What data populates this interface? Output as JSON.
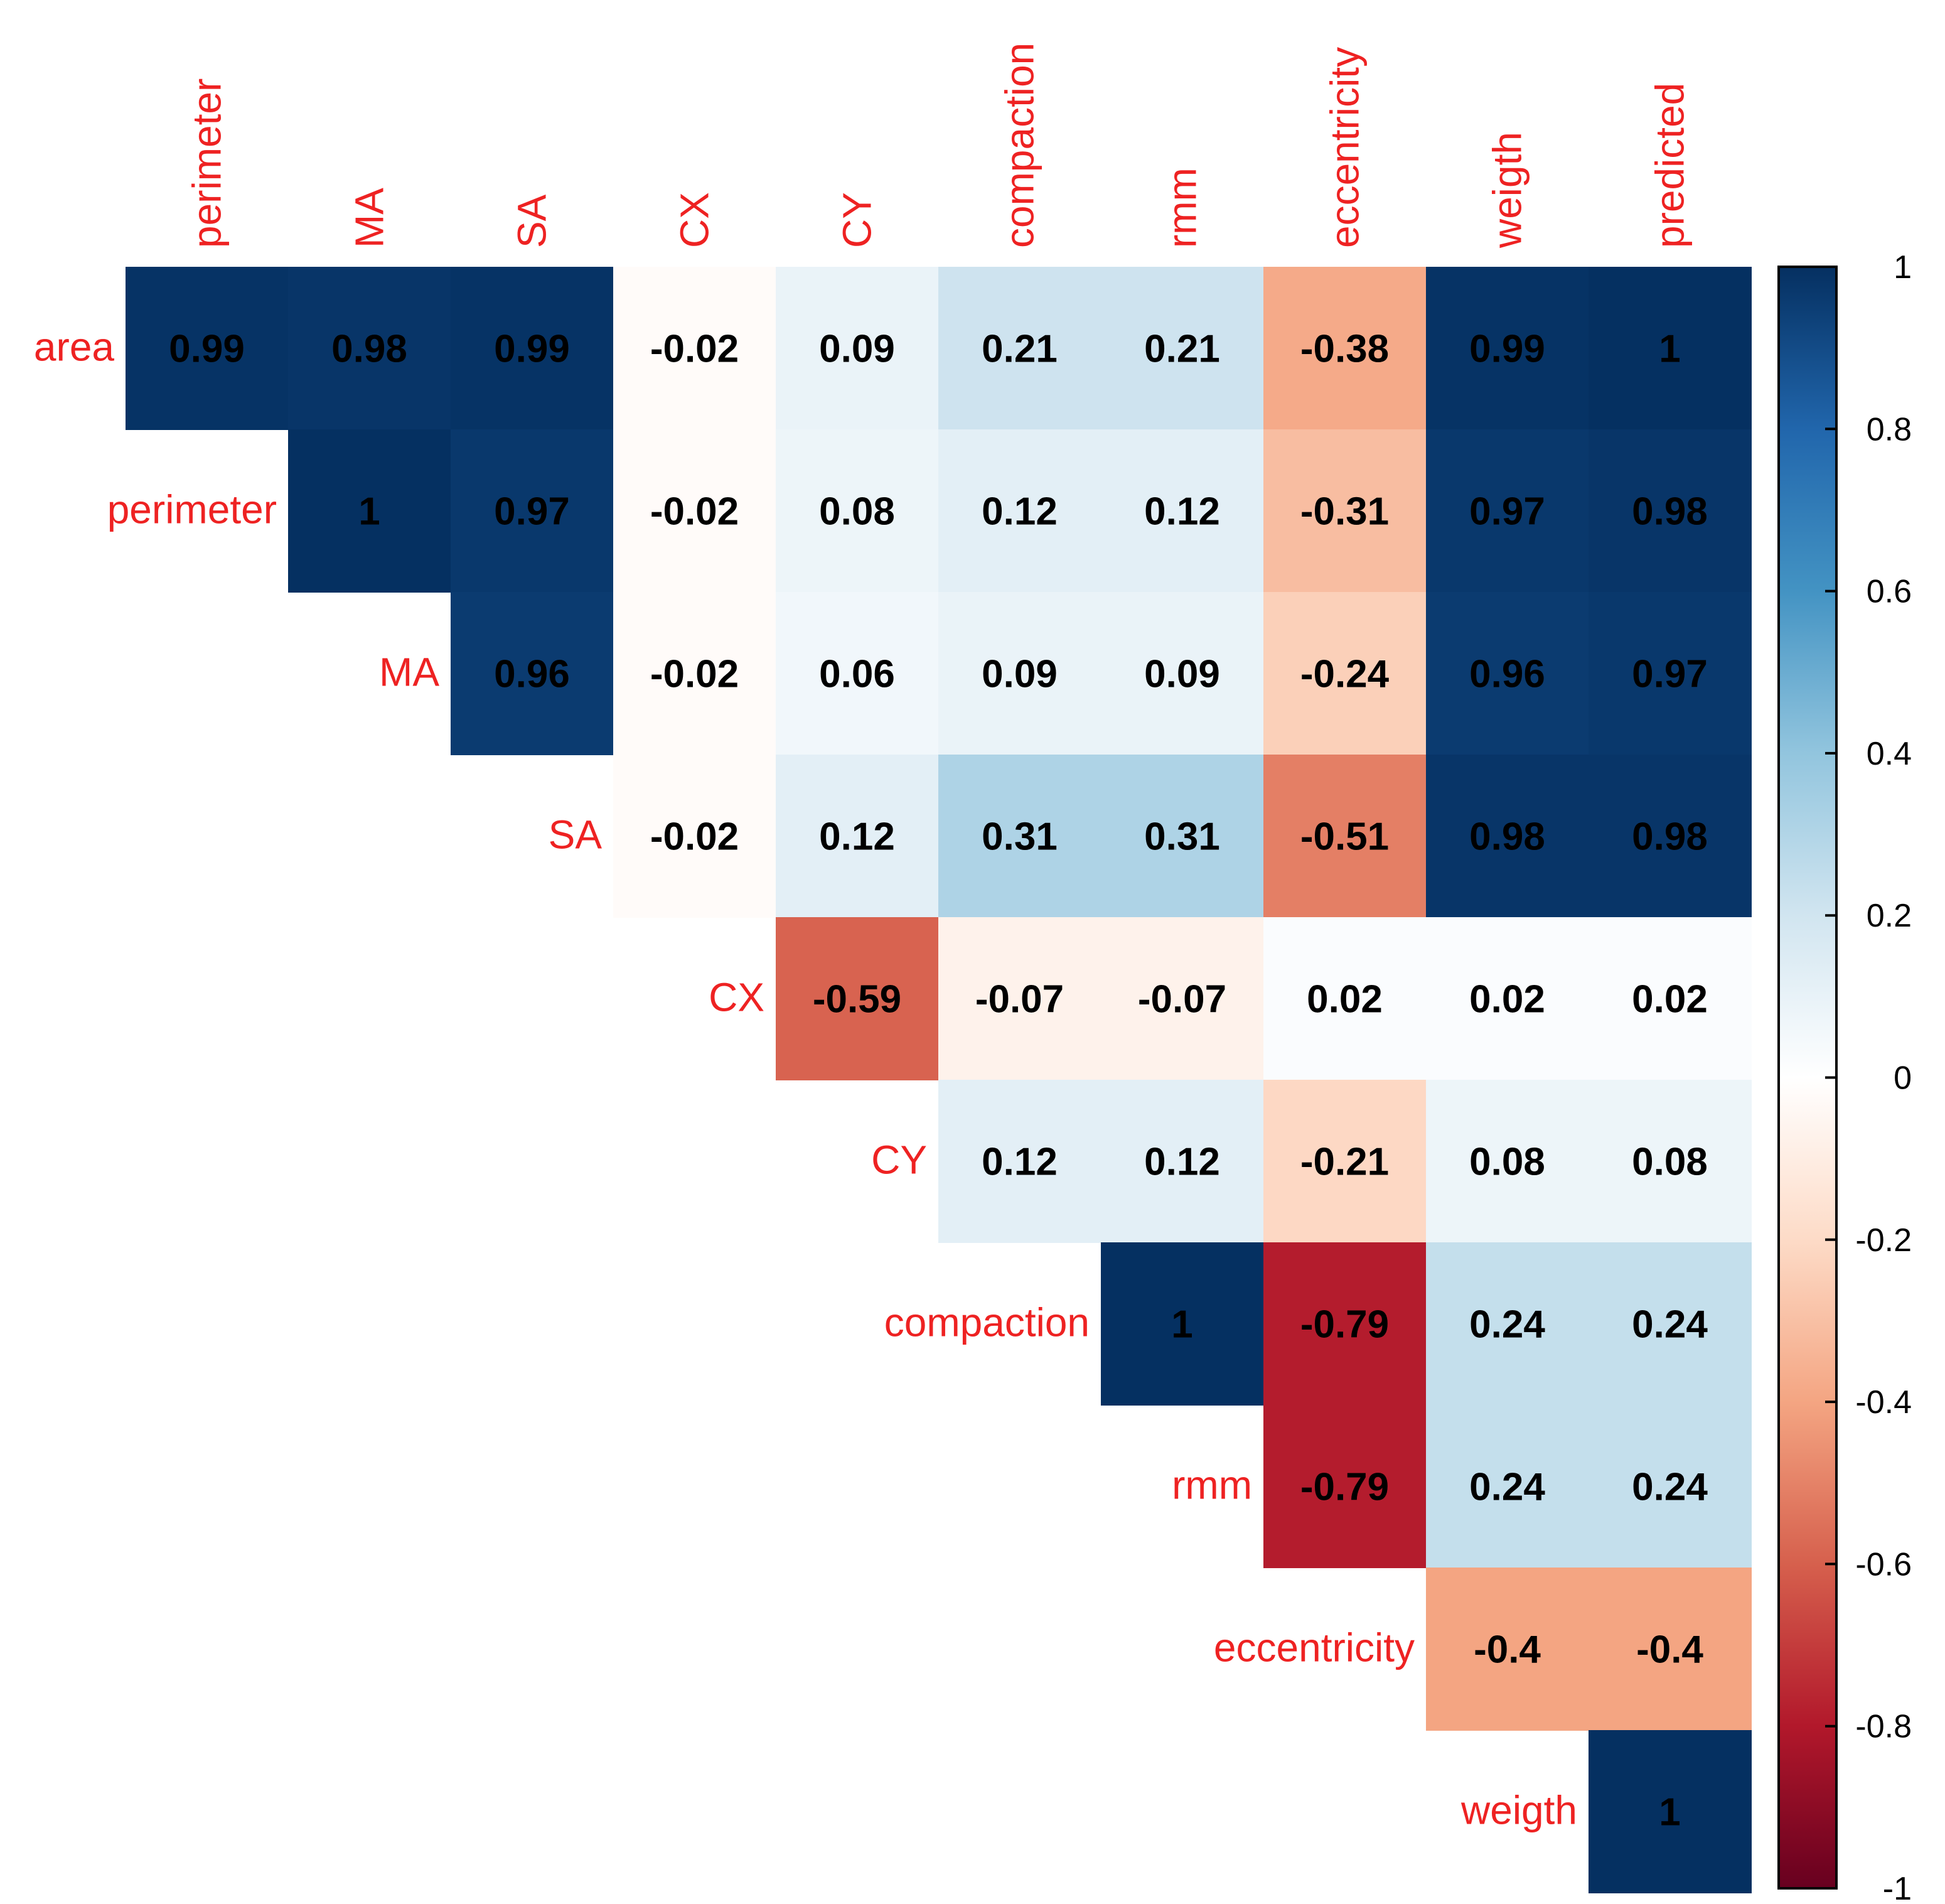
{
  "chart_data": {
    "type": "heatmap",
    "subtype": "upper-triangular correlation matrix",
    "row_labels": [
      "area",
      "perimeter",
      "MA",
      "SA",
      "CX",
      "CY",
      "compaction",
      "rmm",
      "eccentricity",
      "weigth"
    ],
    "col_labels": [
      "perimeter",
      "MA",
      "SA",
      "CX",
      "CY",
      "compaction",
      "rmm",
      "eccentricity",
      "weigth",
      "predicted"
    ],
    "rows": [
      {
        "label": "area",
        "cells": [
          {
            "col": "perimeter",
            "value": 0.99,
            "label": "0.99"
          },
          {
            "col": "MA",
            "value": 0.98,
            "label": "0.98"
          },
          {
            "col": "SA",
            "value": 0.99,
            "label": "0.99"
          },
          {
            "col": "CX",
            "value": -0.02,
            "label": "-0.02"
          },
          {
            "col": "CY",
            "value": 0.09,
            "label": "0.09"
          },
          {
            "col": "compaction",
            "value": 0.21,
            "label": "0.21"
          },
          {
            "col": "rmm",
            "value": 0.21,
            "label": "0.21"
          },
          {
            "col": "eccentricity",
            "value": -0.38,
            "label": "-0.38"
          },
          {
            "col": "weigth",
            "value": 0.99,
            "label": "0.99"
          },
          {
            "col": "predicted",
            "value": 1,
            "label": "1"
          }
        ]
      },
      {
        "label": "perimeter",
        "cells": [
          {
            "col": "MA",
            "value": 1,
            "label": "1"
          },
          {
            "col": "SA",
            "value": 0.97,
            "label": "0.97"
          },
          {
            "col": "CX",
            "value": -0.02,
            "label": "-0.02"
          },
          {
            "col": "CY",
            "value": 0.08,
            "label": "0.08"
          },
          {
            "col": "compaction",
            "value": 0.12,
            "label": "0.12"
          },
          {
            "col": "rmm",
            "value": 0.12,
            "label": "0.12"
          },
          {
            "col": "eccentricity",
            "value": -0.31,
            "label": "-0.31"
          },
          {
            "col": "weigth",
            "value": 0.97,
            "label": "0.97"
          },
          {
            "col": "predicted",
            "value": 0.98,
            "label": "0.98"
          }
        ]
      },
      {
        "label": "MA",
        "cells": [
          {
            "col": "SA",
            "value": 0.96,
            "label": "0.96"
          },
          {
            "col": "CX",
            "value": -0.02,
            "label": "-0.02"
          },
          {
            "col": "CY",
            "value": 0.06,
            "label": "0.06"
          },
          {
            "col": "compaction",
            "value": 0.09,
            "label": "0.09"
          },
          {
            "col": "rmm",
            "value": 0.09,
            "label": "0.09"
          },
          {
            "col": "eccentricity",
            "value": -0.24,
            "label": "-0.24"
          },
          {
            "col": "weigth",
            "value": 0.96,
            "label": "0.96"
          },
          {
            "col": "predicted",
            "value": 0.97,
            "label": "0.97"
          }
        ]
      },
      {
        "label": "SA",
        "cells": [
          {
            "col": "CX",
            "value": -0.02,
            "label": "-0.02"
          },
          {
            "col": "CY",
            "value": 0.12,
            "label": "0.12"
          },
          {
            "col": "compaction",
            "value": 0.31,
            "label": "0.31"
          },
          {
            "col": "rmm",
            "value": 0.31,
            "label": "0.31"
          },
          {
            "col": "eccentricity",
            "value": -0.51,
            "label": "-0.51"
          },
          {
            "col": "weigth",
            "value": 0.98,
            "label": "0.98"
          },
          {
            "col": "predicted",
            "value": 0.98,
            "label": "0.98"
          }
        ]
      },
      {
        "label": "CX",
        "cells": [
          {
            "col": "CY",
            "value": -0.59,
            "label": "-0.59"
          },
          {
            "col": "compaction",
            "value": -0.07,
            "label": "-0.07"
          },
          {
            "col": "rmm",
            "value": -0.07,
            "label": "-0.07"
          },
          {
            "col": "eccentricity",
            "value": 0.02,
            "label": "0.02"
          },
          {
            "col": "weigth",
            "value": 0.02,
            "label": "0.02"
          },
          {
            "col": "predicted",
            "value": 0.02,
            "label": "0.02"
          }
        ]
      },
      {
        "label": "CY",
        "cells": [
          {
            "col": "compaction",
            "value": 0.12,
            "label": "0.12"
          },
          {
            "col": "rmm",
            "value": 0.12,
            "label": "0.12"
          },
          {
            "col": "eccentricity",
            "value": -0.21,
            "label": "-0.21"
          },
          {
            "col": "weigth",
            "value": 0.08,
            "label": "0.08"
          },
          {
            "col": "predicted",
            "value": 0.08,
            "label": "0.08"
          }
        ]
      },
      {
        "label": "compaction",
        "cells": [
          {
            "col": "rmm",
            "value": 1,
            "label": "1"
          },
          {
            "col": "eccentricity",
            "value": -0.79,
            "label": "-0.79"
          },
          {
            "col": "weigth",
            "value": 0.24,
            "label": "0.24"
          },
          {
            "col": "predicted",
            "value": 0.24,
            "label": "0.24"
          }
        ]
      },
      {
        "label": "rmm",
        "cells": [
          {
            "col": "eccentricity",
            "value": -0.79,
            "label": "-0.79"
          },
          {
            "col": "weigth",
            "value": 0.24,
            "label": "0.24"
          },
          {
            "col": "predicted",
            "value": 0.24,
            "label": "0.24"
          }
        ]
      },
      {
        "label": "eccentricity",
        "cells": [
          {
            "col": "weigth",
            "value": -0.4,
            "label": "-0.4"
          },
          {
            "col": "predicted",
            "value": -0.4,
            "label": "-0.4"
          }
        ]
      },
      {
        "label": "weigth",
        "cells": [
          {
            "col": "predicted",
            "value": 1,
            "label": "1"
          }
        ]
      }
    ],
    "colorbar": {
      "range": [
        -1,
        1
      ],
      "ticks": [
        1,
        0.8,
        0.6,
        0.4,
        0.2,
        0,
        -0.2,
        -0.4,
        -0.6,
        -0.8,
        -1
      ],
      "tick_labels": [
        "1",
        "0.8",
        "0.6",
        "0.4",
        "0.2",
        "0",
        "-0.2",
        "-0.4",
        "-0.6",
        "-0.8",
        "-1"
      ],
      "colors": [
        "#67001F",
        "#B2182B",
        "#D6604D",
        "#F4A582",
        "#FDDBC7",
        "#FFFFFF",
        "#D1E5F0",
        "#92C5DE",
        "#4393C3",
        "#2166AC",
        "#053061"
      ]
    },
    "label_color": "#EE2222",
    "value_text_color": "#000000"
  }
}
